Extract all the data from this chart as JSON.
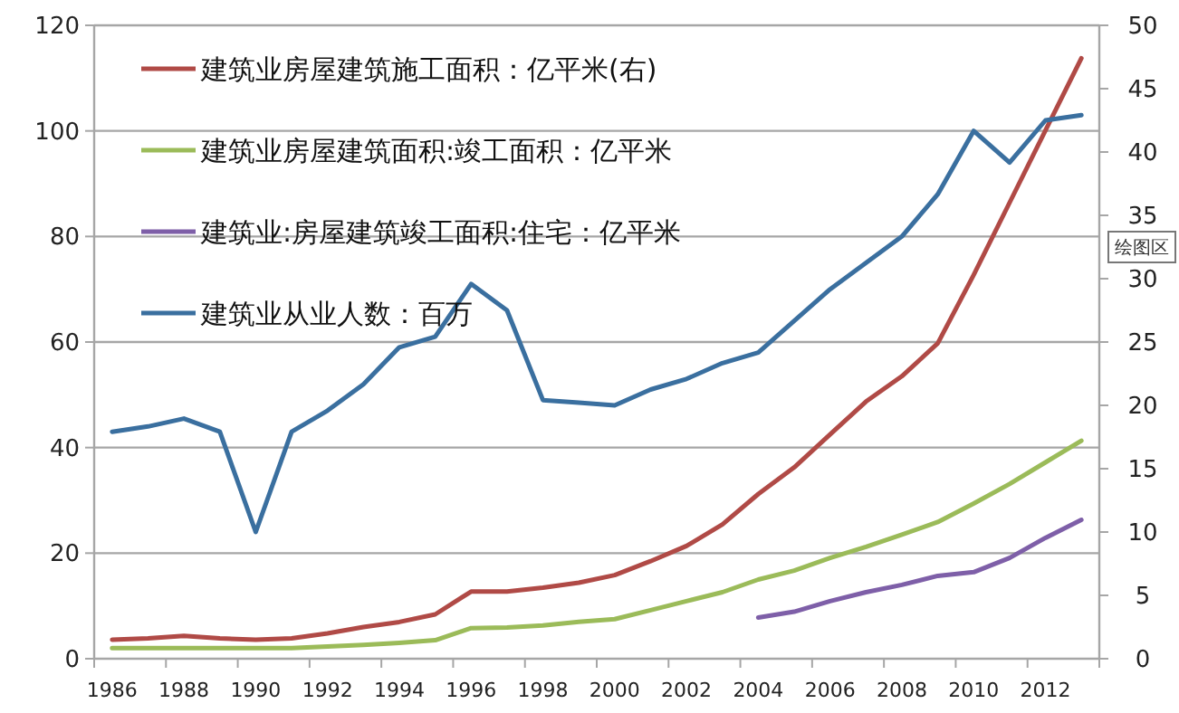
{
  "chart_data": {
    "type": "line",
    "categories": [
      "1986",
      null,
      "1988",
      null,
      "1990",
      null,
      "1992",
      null,
      "1994",
      null,
      "1996",
      null,
      "1998",
      null,
      "2000",
      null,
      "2002",
      null,
      "2004",
      null,
      "2006",
      null,
      "2008",
      null,
      "2010",
      null,
      "2012",
      null
    ],
    "series": [
      {
        "name": "建筑业房屋建筑施工面积：亿平米(右)",
        "color": "#b04a46",
        "axis": "y2",
        "values": [
          1.5,
          1.6,
          1.8,
          1.6,
          1.5,
          1.6,
          2.0,
          2.5,
          2.9,
          3.5,
          5.3,
          5.3,
          5.6,
          6.0,
          6.6,
          7.7,
          8.9,
          10.6,
          13,
          15.1,
          17.7,
          20.3,
          22.3,
          24.9,
          30.3,
          36,
          41.7,
          47.4
        ]
      },
      {
        "name": "建筑业房屋建筑面积:竣工面积：亿平米",
        "color": "#9bbb59",
        "values": [
          2.0,
          2.0,
          2.0,
          2.0,
          2.0,
          2.0,
          2.3,
          2.6,
          3.0,
          3.5,
          5.8,
          5.9,
          6.3,
          7.0,
          7.5,
          9.2,
          10.9,
          12.6,
          15,
          16.7,
          19.1,
          21.2,
          23.5,
          25.9,
          29.4,
          33.1,
          37.2,
          41.3
        ]
      },
      {
        "name": "建筑业:房屋建筑竣工面积:住宅：亿平米",
        "color": "#7e5fa8",
        "values": [
          null,
          null,
          null,
          null,
          null,
          null,
          null,
          null,
          null,
          null,
          null,
          null,
          null,
          null,
          null,
          null,
          null,
          null,
          7.8,
          8.9,
          10.9,
          12.6,
          14,
          15.7,
          16.4,
          19.1,
          22.9,
          26.3
        ]
      },
      {
        "name": "建筑业从业人数：百万",
        "color": "#3a6f9f",
        "values": [
          43,
          44,
          45.5,
          43,
          24,
          43,
          47,
          52,
          59,
          61,
          71,
          66,
          49,
          48.5,
          48,
          51,
          53,
          56,
          58,
          64,
          70,
          75,
          80,
          88,
          100,
          94,
          102,
          103
        ]
      }
    ],
    "ylim": [
      0,
      120
    ],
    "yticks": [
      0,
      20,
      40,
      60,
      80,
      100,
      120
    ],
    "y2lim": [
      0,
      50
    ],
    "y2ticks": [
      0,
      5,
      10,
      15,
      20,
      25,
      30,
      35,
      40,
      45,
      50
    ],
    "grid": "y",
    "legend": "top left",
    "marker": "none",
    "line_style": "solid",
    "annotations": [
      "绘图区"
    ]
  }
}
